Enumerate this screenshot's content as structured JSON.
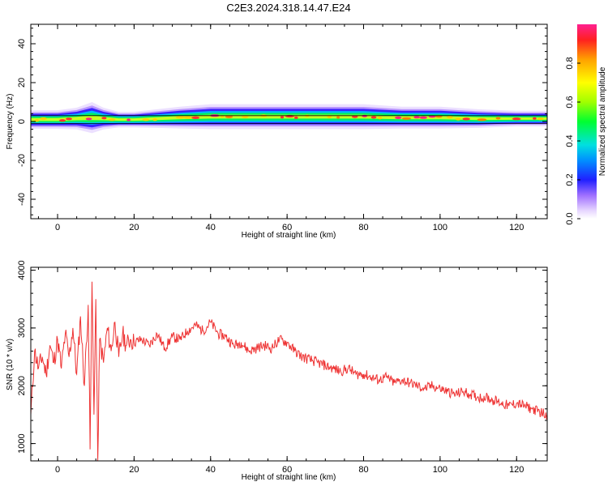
{
  "title": "C2E3.2024.318.14.47.E24",
  "chart_data": [
    {
      "type": "heatmap",
      "xlabel": "Height of straight line (km)",
      "ylabel": "Frequency (Hz)",
      "xlim": [
        -7,
        128
      ],
      "ylim": [
        -50,
        50
      ],
      "xticks": [
        0,
        20,
        40,
        60,
        80,
        100,
        120
      ],
      "yticks": [
        -40,
        -20,
        0,
        20,
        40
      ],
      "colorbar": {
        "label": "Normalized spectral amplitude",
        "range": [
          0,
          1
        ],
        "ticks": [
          0.0,
          0.2,
          0.4,
          0.6,
          0.8
        ]
      },
      "band": [
        {
          "x": -7,
          "center": 1.0,
          "halfwidth": 3.0
        },
        {
          "x": 0,
          "center": 1.0,
          "halfwidth": 3.0
        },
        {
          "x": 5,
          "center": 1.5,
          "halfwidth": 3.5
        },
        {
          "x": 9,
          "center": 2.0,
          "halfwidth": 5.0
        },
        {
          "x": 12,
          "center": 1.5,
          "halfwidth": 3.5
        },
        {
          "x": 16,
          "center": 1.0,
          "halfwidth": 2.5
        },
        {
          "x": 20,
          "center": 1.0,
          "halfwidth": 2.5
        },
        {
          "x": 26,
          "center": 1.5,
          "halfwidth": 3.0
        },
        {
          "x": 32,
          "center": 2.0,
          "halfwidth": 3.5
        },
        {
          "x": 40,
          "center": 2.5,
          "halfwidth": 4.0
        },
        {
          "x": 50,
          "center": 2.5,
          "halfwidth": 4.0
        },
        {
          "x": 60,
          "center": 2.5,
          "halfwidth": 4.0
        },
        {
          "x": 70,
          "center": 2.5,
          "halfwidth": 4.0
        },
        {
          "x": 80,
          "center": 2.5,
          "halfwidth": 4.0
        },
        {
          "x": 90,
          "center": 2.0,
          "halfwidth": 3.5
        },
        {
          "x": 100,
          "center": 2.0,
          "halfwidth": 3.5
        },
        {
          "x": 110,
          "center": 1.5,
          "halfwidth": 3.0
        },
        {
          "x": 120,
          "center": 1.5,
          "halfwidth": 2.5
        },
        {
          "x": 128,
          "center": 1.5,
          "halfwidth": 2.5
        }
      ],
      "reference_lines": [
        -1,
        3
      ]
    },
    {
      "type": "line",
      "xlabel": "Height of straight line (km)",
      "ylabel": "SNR (10 * v/v)",
      "xlim": [
        -7,
        128
      ],
      "ylim": [
        700,
        4050
      ],
      "xticks": [
        0,
        20,
        40,
        60,
        80,
        100,
        120
      ],
      "yticks": [
        1000,
        2000,
        3000,
        4000
      ],
      "color": "#ee3333",
      "series": [
        {
          "x": [
            -7,
            -6,
            -5,
            -4,
            -3,
            -2,
            -1,
            0,
            1,
            2,
            3,
            4,
            5,
            6,
            7,
            8,
            8.5,
            9,
            9.5,
            10,
            10.5,
            11,
            12,
            13,
            14,
            15,
            16,
            17,
            18,
            19,
            20,
            22,
            24,
            26,
            28,
            30,
            32,
            34,
            36,
            38,
            40,
            42,
            44,
            46,
            48,
            50,
            52,
            54,
            56,
            58,
            60,
            62,
            64,
            66,
            68,
            70,
            72,
            74,
            76,
            78,
            80,
            82,
            84,
            86,
            88,
            90,
            92,
            94,
            96,
            98,
            100,
            102,
            104,
            106,
            108,
            110,
            112,
            114,
            116,
            118,
            120,
            122,
            124,
            126,
            128
          ],
          "values": [
            1500,
            2600,
            2300,
            2500,
            2200,
            2700,
            2400,
            2800,
            2300,
            2900,
            2500,
            3000,
            2200,
            3200,
            2000,
            3400,
            900,
            3800,
            1500,
            3500,
            700,
            2800,
            2400,
            3000,
            2600,
            3100,
            2500,
            2900,
            2700,
            2800,
            2750,
            2800,
            2700,
            2900,
            2650,
            2850,
            2800,
            2950,
            3050,
            2950,
            3100,
            2900,
            2850,
            2700,
            2750,
            2600,
            2650,
            2700,
            2650,
            2800,
            2750,
            2600,
            2500,
            2450,
            2400,
            2350,
            2300,
            2250,
            2300,
            2200,
            2200,
            2150,
            2100,
            2150,
            2050,
            2100,
            2050,
            2000,
            1950,
            2000,
            1950,
            1900,
            1850,
            1900,
            1850,
            1800,
            1800,
            1750,
            1700,
            1650,
            1700,
            1650,
            1600,
            1550,
            1500
          ]
        }
      ]
    }
  ]
}
